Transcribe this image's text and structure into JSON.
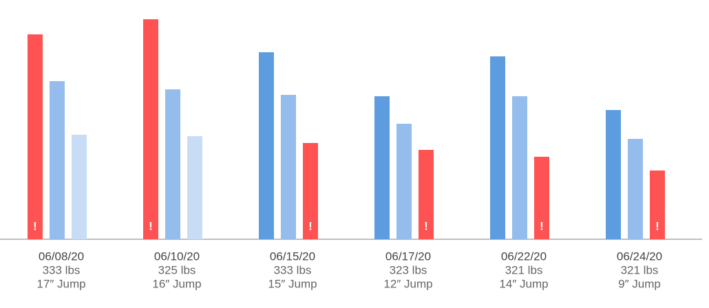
{
  "chart_data": {
    "type": "bar",
    "ylim": [
      0,
      348
    ],
    "groups": [
      {
        "label": [
          "06/08/20",
          "333 lbs",
          "17″ Jump"
        ],
        "bars": [
          {
            "value": 298,
            "color": "#ff5252",
            "flag": "!"
          },
          {
            "value": 230,
            "color": "#94bced"
          },
          {
            "value": 152,
            "color": "#c8ddf5"
          }
        ]
      },
      {
        "label": [
          "06/10/20",
          "325 lbs",
          "16″ Jump"
        ],
        "bars": [
          {
            "value": 320,
            "color": "#ff5252",
            "flag": "!"
          },
          {
            "value": 218,
            "color": "#94bced"
          },
          {
            "value": 150,
            "color": "#c8ddf5"
          }
        ]
      },
      {
        "label": [
          "06/15/20",
          "333 lbs",
          "15″ Jump"
        ],
        "bars": [
          {
            "value": 272,
            "color": "#5d9ddf"
          },
          {
            "value": 210,
            "color": "#94bced"
          },
          {
            "value": 140,
            "color": "#ff5252",
            "flag": "!"
          }
        ]
      },
      {
        "label": [
          "06/17/20",
          "323 lbs",
          "12″ Jump"
        ],
        "bars": [
          {
            "value": 208,
            "color": "#5d9ddf"
          },
          {
            "value": 168,
            "color": "#94bced"
          },
          {
            "value": 130,
            "color": "#ff5252",
            "flag": "!"
          }
        ]
      },
      {
        "label": [
          "06/22/20",
          "321 lbs",
          "14″ Jump"
        ],
        "bars": [
          {
            "value": 266,
            "color": "#5d9ddf"
          },
          {
            "value": 208,
            "color": "#94bced"
          },
          {
            "value": 120,
            "color": "#ff5252",
            "flag": "!"
          }
        ]
      },
      {
        "label": [
          "06/24/20",
          "321 lbs",
          "9″ Jump"
        ],
        "bars": [
          {
            "value": 188,
            "color": "#5d9ddf"
          },
          {
            "value": 146,
            "color": "#94bced"
          },
          {
            "value": 100,
            "color": "#ff5252",
            "flag": "!"
          }
        ]
      }
    ]
  }
}
